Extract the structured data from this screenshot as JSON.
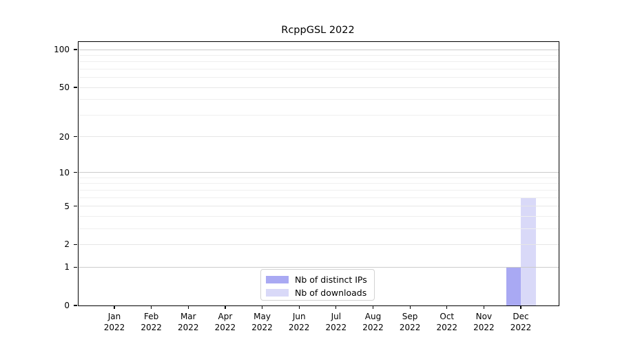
{
  "header": {
    "title": "RcppGSL 2022"
  },
  "chart_data": {
    "type": "bar",
    "title": "RcppGSL 2022",
    "x_month_labels": [
      "Jan",
      "Feb",
      "Mar",
      "Apr",
      "May",
      "Jun",
      "Jul",
      "Aug",
      "Sep",
      "Oct",
      "Nov",
      "Dec"
    ],
    "x_year_label": "2022",
    "series": [
      {
        "name": "Nb of distinct IPs",
        "color": "#a9a9f3",
        "values": [
          0,
          0,
          0,
          0,
          0,
          0,
          0,
          0,
          0,
          0,
          0,
          1
        ]
      },
      {
        "name": "Nb of downloads",
        "color": "#d9d9f8",
        "values": [
          0,
          0,
          0,
          0,
          0,
          0,
          0,
          0,
          0,
          0,
          0,
          6
        ]
      }
    ],
    "y_scale": "log1p",
    "y_ticks": [
      0,
      1,
      2,
      5,
      10,
      20,
      50,
      100
    ],
    "y_minor_gridlines": [
      3,
      4,
      6,
      7,
      8,
      9,
      30,
      40,
      60,
      70,
      80,
      90
    ],
    "y_decade_gridlines": [
      1,
      10,
      100
    ],
    "ylim": [
      0,
      114
    ],
    "grid": "horizontal",
    "legend_position": "lower-center-inside",
    "colors": {
      "decade_grid": "#cbcbcb",
      "labeled_grid": "#e6e6e6",
      "minor_grid": "#efefef",
      "axis": "#000000",
      "background": "#ffffff"
    }
  }
}
